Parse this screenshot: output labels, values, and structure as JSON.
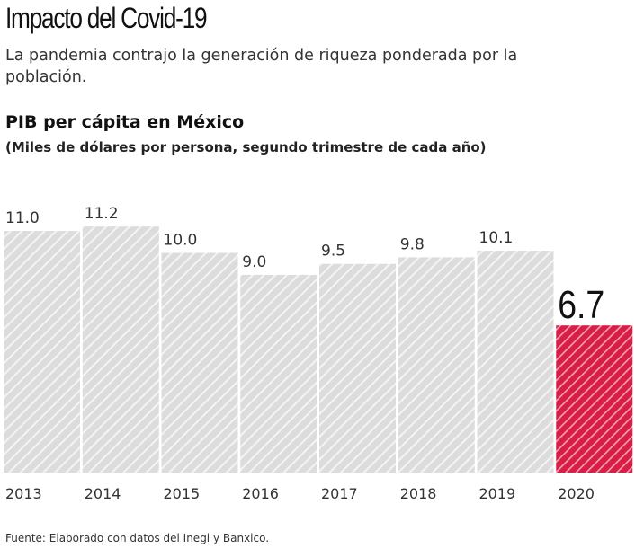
{
  "title": "Impacto del Covid-19",
  "subtitle": "La pandemia contrajo la generación de riqueza ponderada por la población.",
  "source": "Fuente: Elaborado con datos del Inegi y Banxico.",
  "chart_data": {
    "type": "bar",
    "title": "PIB per cápita en México",
    "ylabel": "(Miles de dólares por persona, segundo trimestre de cada año)",
    "categories": [
      "2013",
      "2014",
      "2015",
      "2016",
      "2017",
      "2018",
      "2019",
      "2020"
    ],
    "values": [
      11.0,
      11.2,
      10.0,
      9.0,
      9.5,
      9.8,
      10.1,
      6.7
    ],
    "value_labels": [
      "11.0",
      "11.2",
      "10.0",
      "9.0",
      "9.5",
      "9.8",
      "10.1",
      "6.7"
    ],
    "ylim": [
      0,
      11.2
    ],
    "grid": false,
    "colors": {
      "default": "#dcdcdc",
      "highlight": "#d81e45"
    },
    "highlight_index": 7
  }
}
